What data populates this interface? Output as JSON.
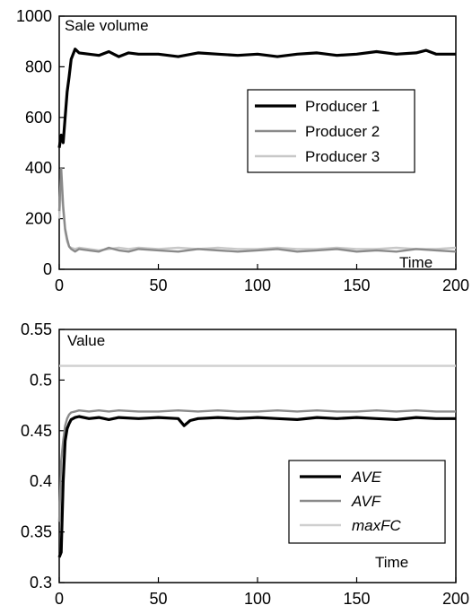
{
  "chart_data": [
    {
      "type": "line",
      "xlabel": "Time",
      "ylabel": "Sale volume",
      "xlim": [
        0,
        200
      ],
      "ylim": [
        0,
        1000
      ],
      "xticks": [
        "0",
        "50",
        "100",
        "150",
        "200"
      ],
      "yticks": [
        "0",
        "200",
        "400",
        "600",
        "800",
        "1000"
      ],
      "legend_position": "right-middle",
      "legend_italic": false,
      "series": [
        {
          "name": "Producer 1",
          "color": "#000000",
          "stroke_key": "thick",
          "x": [
            0,
            1,
            2,
            3,
            4,
            5,
            6,
            8,
            10,
            15,
            20,
            25,
            30,
            35,
            40,
            50,
            60,
            70,
            80,
            90,
            100,
            110,
            120,
            130,
            140,
            150,
            160,
            170,
            180,
            185,
            190,
            200
          ],
          "y": [
            480,
            530,
            500,
            600,
            700,
            760,
            830,
            870,
            855,
            850,
            845,
            860,
            840,
            855,
            850,
            850,
            840,
            855,
            850,
            845,
            850,
            840,
            850,
            855,
            845,
            850,
            860,
            850,
            855,
            865,
            850,
            850
          ]
        },
        {
          "name": "Producer 2",
          "color": "#8a8a8a",
          "stroke_key": "medium",
          "x": [
            0,
            1,
            2,
            3,
            4,
            5,
            6,
            8,
            10,
            15,
            20,
            25,
            30,
            35,
            40,
            50,
            60,
            70,
            80,
            90,
            100,
            110,
            120,
            130,
            140,
            150,
            160,
            170,
            180,
            190,
            200
          ],
          "y": [
            230,
            400,
            250,
            160,
            120,
            90,
            80,
            70,
            80,
            75,
            70,
            85,
            75,
            70,
            80,
            75,
            70,
            80,
            75,
            70,
            75,
            80,
            70,
            75,
            80,
            70,
            75,
            70,
            80,
            75,
            70
          ]
        },
        {
          "name": "Producer 3",
          "color": "#c8c8c8",
          "stroke_key": "medium",
          "x": [
            0,
            1,
            2,
            3,
            4,
            5,
            6,
            8,
            10,
            15,
            20,
            25,
            30,
            35,
            40,
            50,
            60,
            70,
            80,
            90,
            100,
            110,
            120,
            130,
            140,
            150,
            160,
            170,
            180,
            190,
            200
          ],
          "y": [
            200,
            340,
            230,
            150,
            110,
            90,
            85,
            80,
            85,
            80,
            75,
            80,
            85,
            80,
            85,
            80,
            85,
            80,
            85,
            80,
            80,
            85,
            80,
            80,
            85,
            80,
            80,
            85,
            80,
            80,
            85
          ]
        }
      ]
    },
    {
      "type": "line",
      "xlabel": "Time",
      "ylabel": "Value",
      "xlim": [
        0,
        200
      ],
      "ylim": [
        0.3,
        0.55
      ],
      "xticks": [
        "0",
        "50",
        "100",
        "150",
        "200"
      ],
      "yticks": [
        "0.3",
        "0.35",
        "0.4",
        "0.45",
        "0.5",
        "0.55"
      ],
      "legend_position": "bottom-right",
      "legend_italic": true,
      "series": [
        {
          "name": "AVE",
          "color": "#000000",
          "stroke_key": "thick",
          "x": [
            0,
            1,
            2,
            3,
            4,
            5,
            6,
            8,
            10,
            15,
            20,
            25,
            30,
            40,
            50,
            60,
            63,
            66,
            70,
            80,
            90,
            100,
            110,
            120,
            130,
            140,
            150,
            160,
            170,
            180,
            190,
            200
          ],
          "y": [
            0.325,
            0.33,
            0.4,
            0.44,
            0.452,
            0.457,
            0.461,
            0.463,
            0.464,
            0.462,
            0.463,
            0.461,
            0.463,
            0.462,
            0.463,
            0.462,
            0.455,
            0.46,
            0.462,
            0.463,
            0.462,
            0.463,
            0.462,
            0.461,
            0.463,
            0.462,
            0.463,
            0.462,
            0.461,
            0.463,
            0.462,
            0.462
          ]
        },
        {
          "name": "AVF",
          "color": "#8a8a8a",
          "stroke_key": "medium",
          "x": [
            0,
            1,
            2,
            3,
            4,
            5,
            6,
            8,
            10,
            15,
            20,
            25,
            30,
            40,
            50,
            60,
            70,
            80,
            90,
            100,
            110,
            120,
            130,
            140,
            150,
            160,
            170,
            180,
            190,
            200
          ],
          "y": [
            0.36,
            0.42,
            0.44,
            0.455,
            0.462,
            0.466,
            0.468,
            0.469,
            0.47,
            0.469,
            0.47,
            0.469,
            0.47,
            0.469,
            0.469,
            0.47,
            0.469,
            0.47,
            0.469,
            0.469,
            0.47,
            0.469,
            0.47,
            0.469,
            0.469,
            0.47,
            0.469,
            0.47,
            0.469,
            0.469
          ]
        },
        {
          "name": "maxFC",
          "color": "#cfcfcf",
          "stroke_key": "medium",
          "x": [
            0,
            200
          ],
          "y": [
            0.514,
            0.514
          ]
        }
      ]
    }
  ]
}
